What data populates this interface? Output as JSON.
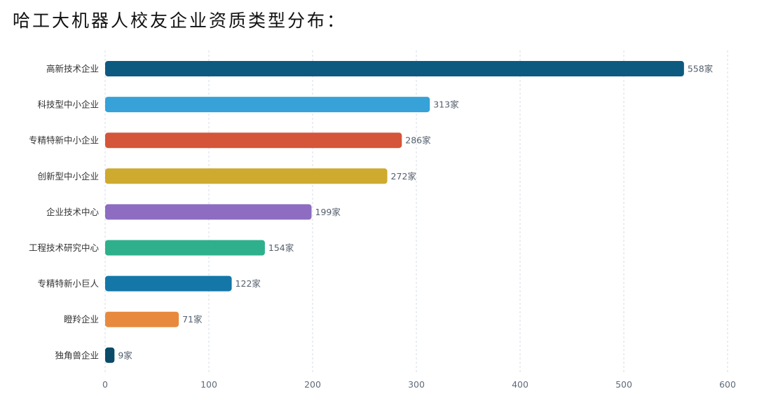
{
  "title": "哈工大机器人校友企业资质类型分布：",
  "chart_data": {
    "type": "bar",
    "orientation": "horizontal",
    "categories": [
      "高新技术企业",
      "科技型中小企业",
      "专精特新中小企业",
      "创新型中小企业",
      "企业技术中心",
      "工程技术研究中心",
      "专精特新小巨人",
      "瞪羚企业",
      "独角兽企业"
    ],
    "values": [
      558,
      313,
      286,
      272,
      199,
      154,
      122,
      71,
      9
    ],
    "value_labels": [
      "558家",
      "313家",
      "286家",
      "272家",
      "199家",
      "154家",
      "122家",
      "71家",
      "9家"
    ],
    "colors": [
      "#0d5a80",
      "#36a2d8",
      "#d4553a",
      "#ceaa2f",
      "#8d6cc1",
      "#2fb08c",
      "#1477a8",
      "#e78a3e",
      "#0c4a6a"
    ],
    "xlim": [
      0,
      600
    ],
    "xticks": [
      0,
      100,
      200,
      300,
      400,
      500,
      600
    ],
    "xtick_labels": [
      "0",
      "100",
      "200",
      "300",
      "400",
      "500",
      "600"
    ],
    "grid": true
  }
}
